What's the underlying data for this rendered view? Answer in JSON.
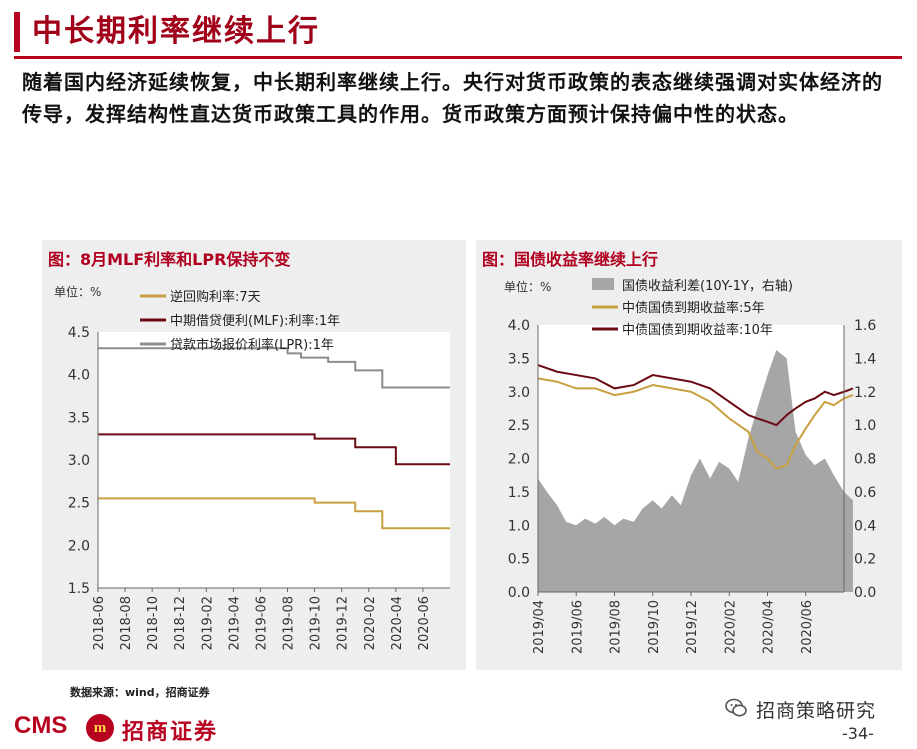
{
  "header": {
    "title": "中长期利率继续上行"
  },
  "intro": {
    "text": "随着国内经济延续恢复，中长期利率继续上行。央行对货币政策的表态继续强调对实体经济的传导，发挥结构性直达货币政策工具的作用。货币政策方面预计保持偏中性的状态。"
  },
  "footer": {
    "source": "数据来源：wind，招商证券",
    "logo_cms": "CMS",
    "logo_emblem": "m",
    "logo_text": "招商证券",
    "watermark": "招商策略研究",
    "page_number": "-34-"
  },
  "chart_data": [
    {
      "type": "line",
      "panel_title": "图：8月MLF利率和LPR保持不变",
      "unit_label": "单位：%",
      "ylim": [
        1.5,
        4.5
      ],
      "yticks": [
        "1.5",
        "2.0",
        "2.5",
        "3.0",
        "3.5",
        "4.0",
        "4.5"
      ],
      "xrange": [
        "2018-06",
        "2020-08"
      ],
      "xticks": [
        "2018-06",
        "2018-08",
        "2018-10",
        "2018-12",
        "2019-02",
        "2019-04",
        "2019-06",
        "2019-08",
        "2019-10",
        "2019-12",
        "2020-02",
        "2020-04",
        "2020-06"
      ],
      "legend_position": "top",
      "series": [
        {
          "name": "逆回购利率:7天",
          "color": "#c9a040",
          "points": [
            [
              "2018-06",
              2.55
            ],
            [
              "2019-10",
              2.55
            ],
            [
              "2019-10",
              2.5
            ],
            [
              "2020-01",
              2.5
            ],
            [
              "2020-01",
              2.4
            ],
            [
              "2020-03",
              2.4
            ],
            [
              "2020-03",
              2.2
            ],
            [
              "2020-08",
              2.2
            ]
          ]
        },
        {
          "name": "中期借贷便利(MLF):利率:1年",
          "color": "#6b0a12",
          "points": [
            [
              "2018-06",
              3.3
            ],
            [
              "2019-10",
              3.3
            ],
            [
              "2019-10",
              3.25
            ],
            [
              "2020-01",
              3.25
            ],
            [
              "2020-01",
              3.15
            ],
            [
              "2020-04",
              3.15
            ],
            [
              "2020-04",
              2.95
            ],
            [
              "2020-08",
              2.95
            ]
          ]
        },
        {
          "name": "贷款市场报价利率(LPR):1年",
          "color": "#8c8c8c",
          "points": [
            [
              "2018-06",
              4.31
            ],
            [
              "2019-08",
              4.31
            ],
            [
              "2019-08",
              4.25
            ],
            [
              "2019-09",
              4.25
            ],
            [
              "2019-09",
              4.2
            ],
            [
              "2019-11",
              4.2
            ],
            [
              "2019-11",
              4.15
            ],
            [
              "2020-01",
              4.15
            ],
            [
              "2020-01",
              4.05
            ],
            [
              "2020-03",
              4.05
            ],
            [
              "2020-03",
              3.85
            ],
            [
              "2020-08",
              3.85
            ]
          ]
        }
      ]
    },
    {
      "type": "line",
      "panel_title": "图：国债收益率继续上行",
      "unit_label": "单位：%",
      "ylim": [
        0.0,
        4.0
      ],
      "yticks": [
        "0.0",
        "0.5",
        "1.0",
        "1.5",
        "2.0",
        "2.5",
        "3.0",
        "3.5",
        "4.0"
      ],
      "y2lim": [
        0.0,
        1.6
      ],
      "y2ticks": [
        "0.0",
        "0.2",
        "0.4",
        "0.6",
        "0.8",
        "1.0",
        "1.2",
        "1.4",
        "1.6"
      ],
      "xrange": [
        "2019-04",
        "2020-08"
      ],
      "xticks": [
        "2019/04",
        "2019/06",
        "2019/08",
        "2019/10",
        "2019/12",
        "2020/02",
        "2020/04",
        "2020/06"
      ],
      "legend_position": "top",
      "series": [
        {
          "name": "国债收益利差(10Y-1Y，右轴)",
          "color": "#a6a6a6",
          "axis": "right",
          "style": "area",
          "points": [
            [
              "2019-04",
              0.68
            ],
            [
              "2019-04-15",
              0.6
            ],
            [
              "2019-05",
              0.52
            ],
            [
              "2019-05-15",
              0.42
            ],
            [
              "2019-06",
              0.4
            ],
            [
              "2019-06-15",
              0.44
            ],
            [
              "2019-07",
              0.41
            ],
            [
              "2019-07-15",
              0.45
            ],
            [
              "2019-08",
              0.4
            ],
            [
              "2019-08-15",
              0.44
            ],
            [
              "2019-09",
              0.42
            ],
            [
              "2019-09-15",
              0.5
            ],
            [
              "2019-10",
              0.55
            ],
            [
              "2019-10-15",
              0.5
            ],
            [
              "2019-11",
              0.58
            ],
            [
              "2019-11-15",
              0.52
            ],
            [
              "2019-12",
              0.7
            ],
            [
              "2019-12-15",
              0.8
            ],
            [
              "2020-01",
              0.68
            ],
            [
              "2020-01-15",
              0.78
            ],
            [
              "2020-02",
              0.74
            ],
            [
              "2020-02-15",
              0.66
            ],
            [
              "2020-03",
              0.92
            ],
            [
              "2020-03-15",
              1.1
            ],
            [
              "2020-04",
              1.3
            ],
            [
              "2020-04-15",
              1.45
            ],
            [
              "2020-05",
              1.4
            ],
            [
              "2020-05-15",
              0.96
            ],
            [
              "2020-06",
              0.82
            ],
            [
              "2020-06-15",
              0.76
            ],
            [
              "2020-07",
              0.8
            ],
            [
              "2020-07-15",
              0.7
            ],
            [
              "2020-08",
              0.6
            ],
            [
              "2020-08-15",
              0.55
            ]
          ]
        },
        {
          "name": "中债国债到期收益率:5年",
          "color": "#c9a040",
          "axis": "left",
          "points": [
            [
              "2019-04",
              3.2
            ],
            [
              "2019-05",
              3.15
            ],
            [
              "2019-06",
              3.05
            ],
            [
              "2019-07",
              3.05
            ],
            [
              "2019-08",
              2.95
            ],
            [
              "2019-09",
              3.0
            ],
            [
              "2019-10",
              3.1
            ],
            [
              "2019-11",
              3.05
            ],
            [
              "2019-12",
              3.0
            ],
            [
              "2020-01",
              2.85
            ],
            [
              "2020-02",
              2.6
            ],
            [
              "2020-03",
              2.4
            ],
            [
              "2020-03-15",
              2.1
            ],
            [
              "2020-04",
              2.0
            ],
            [
              "2020-04-15",
              1.85
            ],
            [
              "2020-05",
              1.9
            ],
            [
              "2020-05-15",
              2.2
            ],
            [
              "2020-06",
              2.45
            ],
            [
              "2020-06-15",
              2.65
            ],
            [
              "2020-07",
              2.85
            ],
            [
              "2020-07-15",
              2.8
            ],
            [
              "2020-08",
              2.9
            ],
            [
              "2020-08-15",
              2.95
            ]
          ]
        },
        {
          "name": "中债国债到期收益率:10年",
          "color": "#6b0a12",
          "axis": "left",
          "points": [
            [
              "2019-04",
              3.4
            ],
            [
              "2019-05",
              3.3
            ],
            [
              "2019-06",
              3.25
            ],
            [
              "2019-07",
              3.2
            ],
            [
              "2019-08",
              3.05
            ],
            [
              "2019-09",
              3.1
            ],
            [
              "2019-10",
              3.25
            ],
            [
              "2019-11",
              3.2
            ],
            [
              "2019-12",
              3.15
            ],
            [
              "2020-01",
              3.05
            ],
            [
              "2020-02",
              2.85
            ],
            [
              "2020-03",
              2.65
            ],
            [
              "2020-03-15",
              2.6
            ],
            [
              "2020-04",
              2.55
            ],
            [
              "2020-04-15",
              2.5
            ],
            [
              "2020-05",
              2.65
            ],
            [
              "2020-05-15",
              2.75
            ],
            [
              "2020-06",
              2.85
            ],
            [
              "2020-06-15",
              2.9
            ],
            [
              "2020-07",
              3.0
            ],
            [
              "2020-07-15",
              2.95
            ],
            [
              "2020-08",
              3.0
            ],
            [
              "2020-08-15",
              3.05
            ]
          ]
        }
      ]
    }
  ]
}
